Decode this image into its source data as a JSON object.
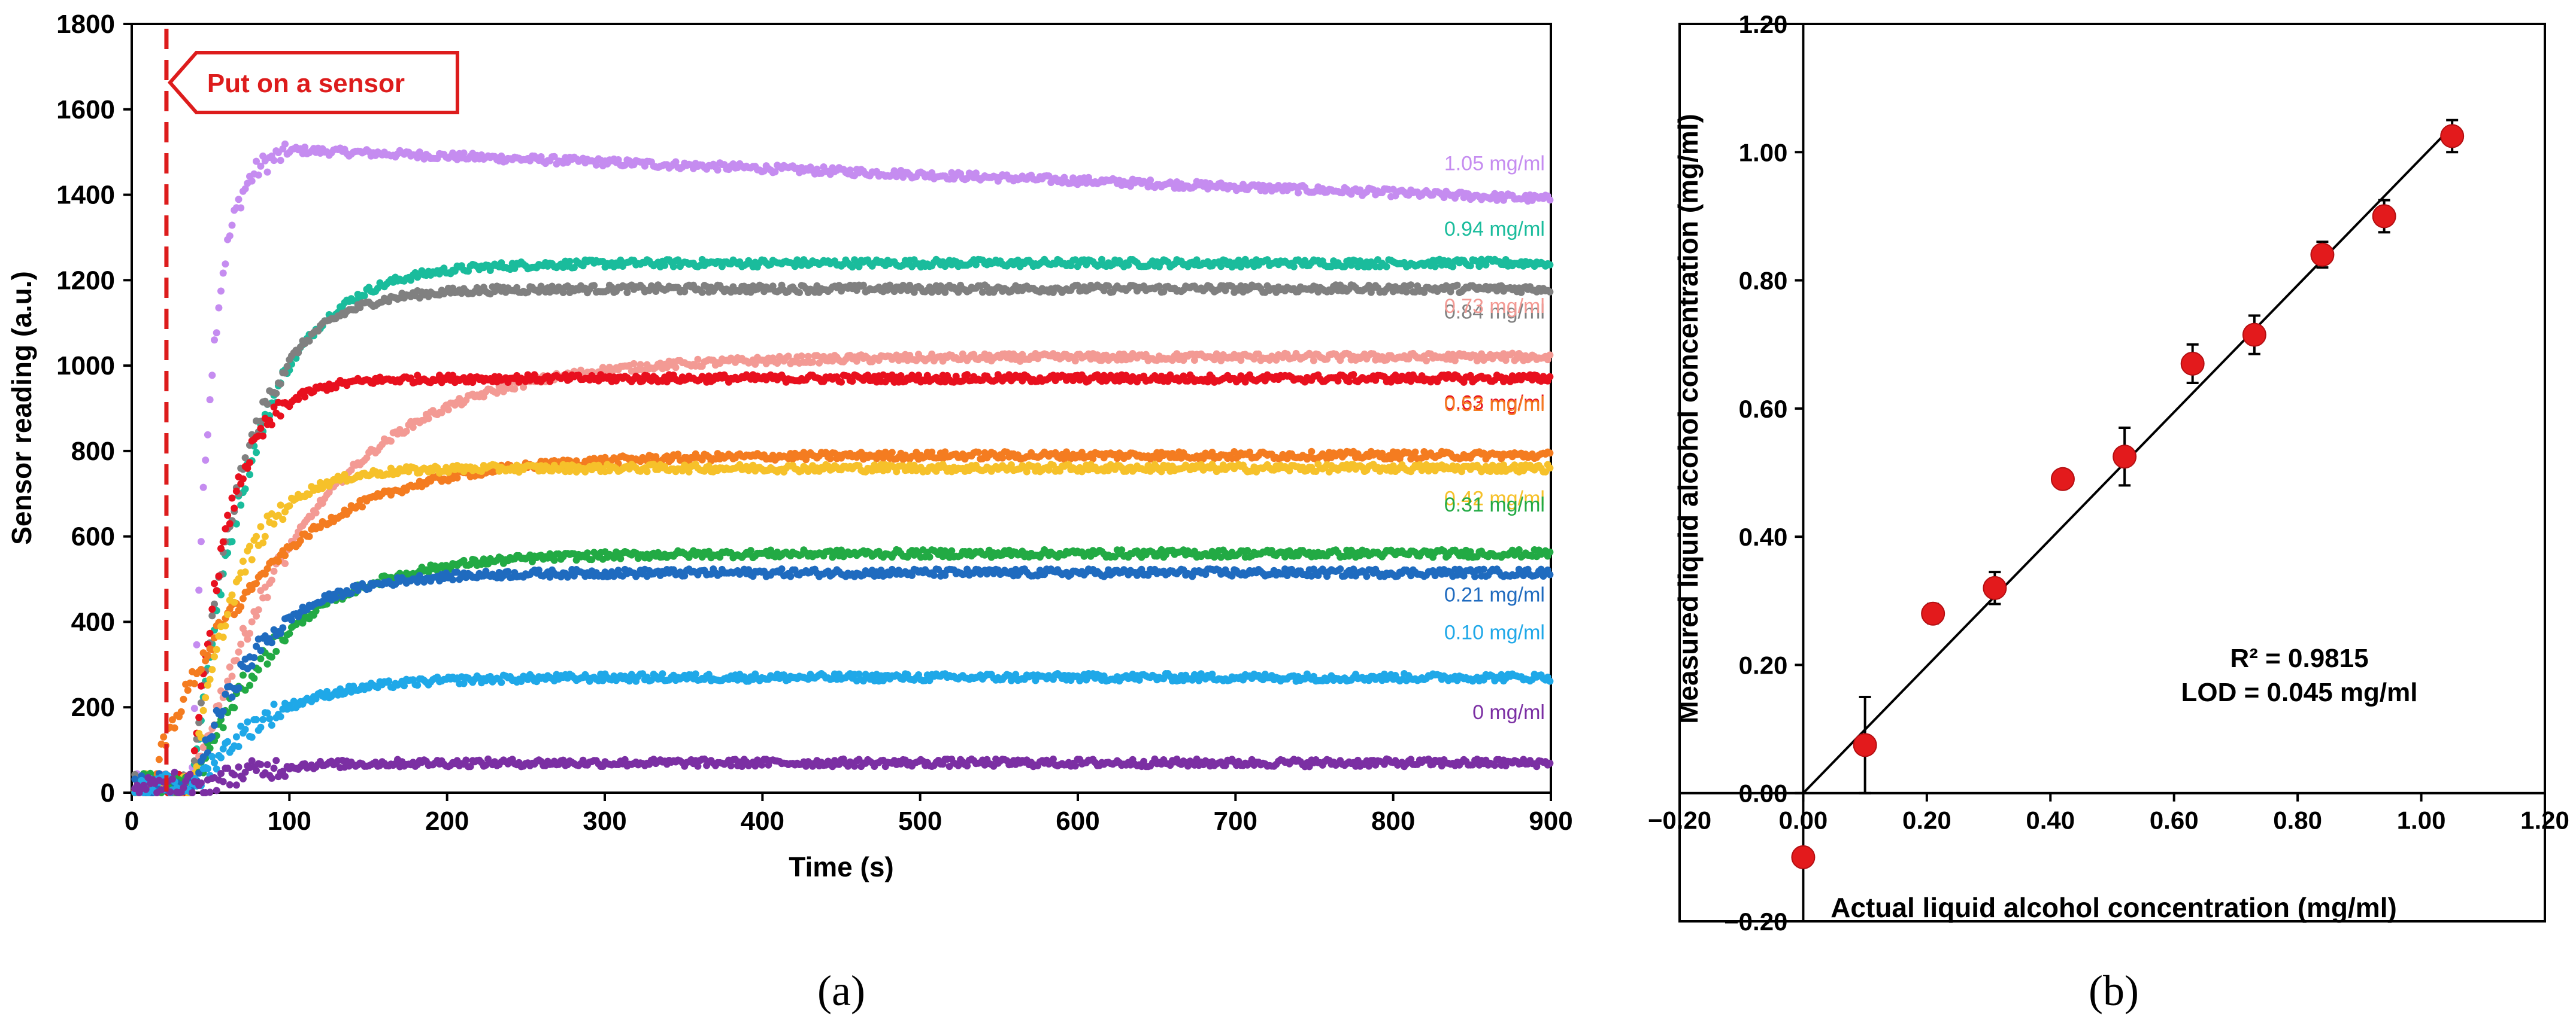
{
  "chart_data": [
    {
      "type": "scatter",
      "panel_label": "(a)",
      "xlabel": "Time (s)",
      "ylabel": "Sensor reading (a.u.)",
      "xlim": [
        0,
        900
      ],
      "ylim": [
        0,
        1800
      ],
      "xticks": [
        0,
        100,
        200,
        300,
        400,
        500,
        600,
        700,
        800,
        900
      ],
      "yticks": [
        0,
        200,
        400,
        600,
        800,
        1000,
        1200,
        1400,
        1600,
        1800
      ],
      "annotation": {
        "text": "Put on a sensor",
        "x": 22,
        "color": "#dd1c1c"
      },
      "series": [
        {
          "name": "1.05 mg/ml",
          "color": "#c58cf0",
          "onset": 38,
          "peak_time": 100,
          "peak": 1505,
          "end": 1390
        },
        {
          "name": "0.94 mg/ml",
          "color": "#1abc9c",
          "onset": 38,
          "tau": 38,
          "plateau": 1240
        },
        {
          "name": "0.84 mg/ml",
          "color": "#808080",
          "onset": 38,
          "tau": 32,
          "plateau": 1180
        },
        {
          "name": "0.73 mg/ml",
          "color": "#f39a94",
          "onset": 38,
          "tau": 75,
          "plateau": 1020
        },
        {
          "name": "0.63 mg/ml",
          "color": "#e8101e",
          "onset": 38,
          "tau": 22,
          "plateau": 970
        },
        {
          "name": "0.52 mg/ml",
          "color": "#f47c20",
          "onset": 10,
          "tau": 70,
          "plateau": 790
        },
        {
          "name": "0.42 mg/ml",
          "color": "#f6c12a",
          "onset": 38,
          "tau": 28,
          "plateau": 760
        },
        {
          "name": "0.31 mg/ml",
          "color": "#22aa44",
          "onset": 38,
          "tau": 55,
          "plateau": 560
        },
        {
          "name": "0.21 mg/ml",
          "color": "#1f6bbf",
          "onset": 38,
          "tau": 40,
          "plateau": 515
        },
        {
          "name": "0.10 mg/ml",
          "color": "#1fa8e8",
          "onset": 38,
          "tau": 45,
          "plateau": 270
        },
        {
          "name": "0 mg/ml",
          "color": "#7b2fa3",
          "onset": 38,
          "tau": 30,
          "plateau": 70
        }
      ]
    },
    {
      "type": "scatter",
      "panel_label": "(b)",
      "xlabel": "Actual liquid alcohol concentration (mg/ml)",
      "ylabel": "Measured liquid alcohol concentration (mg/ml)",
      "xlim": [
        -0.2,
        1.2
      ],
      "ylim": [
        -0.2,
        1.2
      ],
      "xticks": [
        "−0.20",
        "0.00",
        "0.20",
        "0.40",
        "0.60",
        "0.80",
        "1.00",
        "1.20"
      ],
      "yticks": [
        "−0.20",
        "0.00",
        "0.20",
        "0.40",
        "0.60",
        "0.80",
        "1.00",
        "1.20"
      ],
      "x": [
        0.0,
        0.1,
        0.21,
        0.31,
        0.42,
        0.52,
        0.63,
        0.73,
        0.84,
        0.94,
        1.05
      ],
      "y": [
        -0.1,
        0.075,
        0.28,
        0.32,
        0.49,
        0.525,
        0.67,
        0.715,
        0.84,
        0.9,
        1.025
      ],
      "error": [
        0.0,
        0.075,
        0.015,
        0.025,
        0.0,
        0.045,
        0.03,
        0.03,
        0.02,
        0.025,
        0.025
      ],
      "fit": {
        "x": [
          0.0,
          1.05
        ],
        "y": [
          0.0,
          1.04
        ]
      },
      "marker_color": "#e31a1c",
      "r2_text": "R² = 0.9815",
      "lod_text": "LOD = 0.045 mg/ml"
    }
  ]
}
